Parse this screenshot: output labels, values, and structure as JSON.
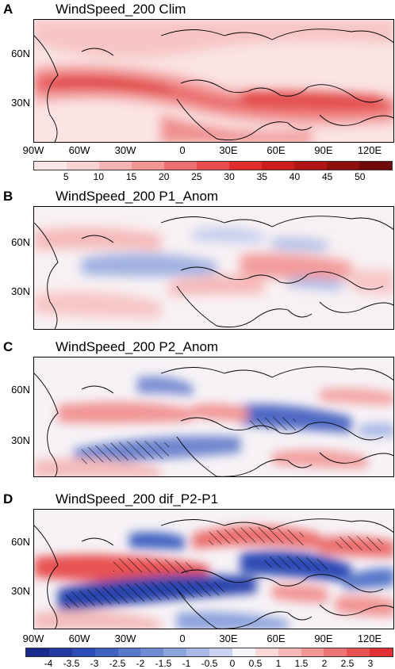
{
  "panels": [
    {
      "letter": "A",
      "title": "WindSpeed_200 Clim"
    },
    {
      "letter": "B",
      "title": "WindSpeed_200 P1_Anom"
    },
    {
      "letter": "C",
      "title": "WindSpeed_200 P2_Anom"
    },
    {
      "letter": "D",
      "title": "WindSpeed_200 dif_P2-P1"
    }
  ],
  "lat_labels": [
    "60N",
    "30N"
  ],
  "lon_labels": [
    "90W",
    "60W",
    "30W",
    "0",
    "30E",
    "60E",
    "90E",
    "120E"
  ],
  "colorbar_clim": {
    "ticks": [
      "5",
      "10",
      "15",
      "20",
      "25",
      "30",
      "35",
      "40",
      "45",
      "50"
    ],
    "colors": [
      "#fbe7e7",
      "#f9d2d2",
      "#f5b4b4",
      "#f19595",
      "#ec7070",
      "#e84c4c",
      "#e02c2c",
      "#cc1d1d",
      "#b01515",
      "#8f0f0f",
      "#700a0a"
    ]
  },
  "colorbar_anom": {
    "ticks": [
      "-4",
      "-3.5",
      "-3",
      "-2.5",
      "-2",
      "-1.5",
      "-1",
      "-0.5",
      "0",
      "0.5",
      "1",
      "1.5",
      "2",
      "2.5",
      "3"
    ],
    "colors": [
      "#1a2a8c",
      "#233aa4",
      "#2e4cb5",
      "#3f62c1",
      "#5677ca",
      "#6f8cd3",
      "#8ca3dd",
      "#aab9e6",
      "#c9d2ef",
      "#f4f4fb",
      "#fbd9d9",
      "#f7b8b8",
      "#f29696",
      "#ed7474",
      "#e85252",
      "#e03232"
    ]
  },
  "chart_data": [
    {
      "type": "heatmap",
      "title": "WindSpeed_200 Clim",
      "x_ticks": [
        "90W",
        "60W",
        "30W",
        "0",
        "30E",
        "60E",
        "90E",
        "120E"
      ],
      "y_ticks": [
        "60N",
        "30N"
      ],
      "colorbar_ticks": [
        5,
        10,
        15,
        20,
        25,
        30,
        35,
        40,
        45,
        50
      ],
      "description_values": {
        "jet_core_max": 30,
        "jet_lat": "30N-45N"
      }
    },
    {
      "type": "heatmap",
      "title": "WindSpeed_200 P1_Anom",
      "x_ticks": [
        "90W",
        "60W",
        "30W",
        "0",
        "30E",
        "60E",
        "90E",
        "120E"
      ],
      "y_ticks": [
        "60N",
        "30N"
      ]
    },
    {
      "type": "heatmap",
      "title": "WindSpeed_200 P2_Anom",
      "x_ticks": [
        "90W",
        "60W",
        "30W",
        "0",
        "30E",
        "60E",
        "90E",
        "120E"
      ],
      "y_ticks": [
        "60N",
        "30N"
      ]
    },
    {
      "type": "heatmap",
      "title": "WindSpeed_200 dif_P2-P1",
      "x_ticks": [
        "90W",
        "60W",
        "30W",
        "0",
        "30E",
        "60E",
        "90E",
        "120E"
      ],
      "y_ticks": [
        "60N",
        "30N"
      ],
      "colorbar_ticks": [
        -4,
        -3.5,
        -3,
        -2.5,
        -2,
        -1.5,
        -1,
        -0.5,
        0,
        0.5,
        1,
        1.5,
        2,
        2.5,
        3
      ]
    }
  ]
}
